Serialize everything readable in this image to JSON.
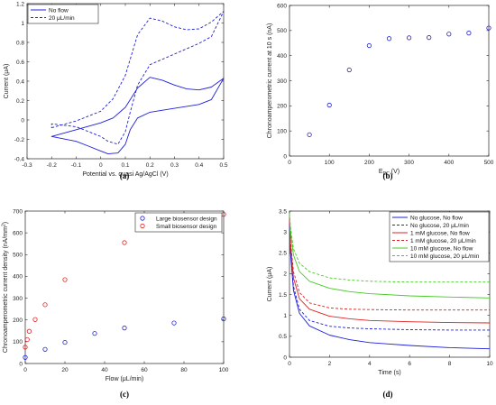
{
  "chart_data": [
    {
      "type": "line",
      "panel": "(a)",
      "xlabel": "Potential vs. quasi Ag/AgCl (V)",
      "ylabel": "Current (μA)",
      "xlim": [
        -0.3,
        0.5
      ],
      "ylim": [
        -0.4,
        1.2
      ],
      "xticks": [
        "-0.3",
        "-0.2",
        "-0.1",
        "0",
        "0.1",
        "0.2",
        "0.3",
        "0.4",
        "0.5"
      ],
      "yticks": [
        "-0.4",
        "-0.2",
        "0",
        "0.2",
        "0.4",
        "0.6",
        "0.8",
        "1",
        "1.2"
      ],
      "legend_position": "top-left",
      "series": [
        {
          "name": "No flow",
          "color": "#1f1fdc",
          "dash": "solid",
          "x": [
            -0.2,
            -0.1,
            0.0,
            0.05,
            0.1,
            0.15,
            0.2,
            0.25,
            0.3,
            0.35,
            0.4,
            0.45,
            0.5,
            0.45,
            0.4,
            0.3,
            0.2,
            0.15,
            0.12,
            0.1,
            0.07,
            0.03,
            0.0,
            -0.05,
            -0.1,
            -0.2
          ],
          "y": [
            -0.17,
            -0.1,
            -0.03,
            0.02,
            0.13,
            0.33,
            0.44,
            0.41,
            0.36,
            0.32,
            0.31,
            0.34,
            0.43,
            0.21,
            0.16,
            0.12,
            0.08,
            0.02,
            -0.1,
            -0.25,
            -0.34,
            -0.35,
            -0.32,
            -0.27,
            -0.22,
            -0.17
          ]
        },
        {
          "name": "20 μL/min",
          "color": "#1f1fdc",
          "dash": "dashed",
          "x": [
            -0.2,
            -0.1,
            0.0,
            0.05,
            0.1,
            0.15,
            0.2,
            0.25,
            0.3,
            0.35,
            0.4,
            0.45,
            0.5,
            0.45,
            0.4,
            0.3,
            0.2,
            0.15,
            0.12,
            0.1,
            0.07,
            0.03,
            0.0,
            -0.05,
            -0.1,
            -0.2
          ],
          "y": [
            -0.08,
            -0.01,
            0.09,
            0.22,
            0.46,
            0.88,
            1.05,
            1.02,
            0.96,
            0.93,
            0.94,
            1.01,
            1.12,
            0.86,
            0.79,
            0.68,
            0.57,
            0.36,
            0.08,
            -0.12,
            -0.25,
            -0.22,
            -0.17,
            -0.12,
            -0.07,
            -0.04
          ]
        }
      ]
    },
    {
      "type": "scatter",
      "panel": "(b)",
      "xlabel": "E",
      "xlabel_subscript": "DC",
      "xlabel_unit": " (V)",
      "ylabel": "Chronoamperometric current at 10 s (nA)",
      "xlim": [
        0,
        500
      ],
      "ylim": [
        0,
        600
      ],
      "xticks": [
        "0",
        "100",
        "200",
        "300",
        "400",
        "500"
      ],
      "yticks": [
        "0",
        "100",
        "200",
        "300",
        "400",
        "500",
        "600"
      ],
      "series": [
        {
          "color": "#1f1fdc",
          "x": [
            50,
            100,
            150,
            200,
            250,
            300,
            350,
            400,
            450,
            500
          ],
          "y": [
            85,
            203,
            343,
            440,
            468,
            471,
            472,
            486,
            490,
            510
          ]
        }
      ]
    },
    {
      "type": "scatter",
      "panel": "(c)",
      "xlabel": "Flow (μL/min)",
      "ylabel": "Chronoamperometric current density (nA/mm",
      "ylabel_superscript": "2",
      "ylabel_end": ")",
      "xlim": [
        0,
        100
      ],
      "ylim": [
        0,
        700
      ],
      "xticks": [
        "0",
        "20",
        "40",
        "60",
        "80",
        "100"
      ],
      "yticks": [
        "0",
        "100",
        "200",
        "300",
        "400",
        "500",
        "600",
        "700"
      ],
      "legend_position": "top-right",
      "series": [
        {
          "name": "Large biosensor design",
          "color": "#1f1fdc",
          "x": [
            0,
            10,
            20,
            35,
            50,
            75,
            100
          ],
          "y": [
            28,
            65,
            97,
            138,
            163,
            186,
            205
          ]
        },
        {
          "name": "Small biosensor design",
          "color": "#e02020",
          "x": [
            0,
            1,
            2,
            5,
            10,
            20,
            50,
            100
          ],
          "y": [
            75,
            110,
            148,
            202,
            270,
            385,
            555,
            685
          ]
        }
      ]
    },
    {
      "type": "line",
      "panel": "(d)",
      "xlabel": "Time (s)",
      "ylabel": "Current (μA)",
      "xlim": [
        0,
        10
      ],
      "ylim": [
        0,
        3.5
      ],
      "xticks": [
        "0",
        "2",
        "4",
        "6",
        "8",
        "10"
      ],
      "yticks": [
        "0",
        "0.5",
        "1",
        "1.5",
        "2",
        "2.5",
        "3",
        "3.5"
      ],
      "legend_position": "top-right",
      "series": [
        {
          "name": "No glucose, No flow",
          "color": "#1f1fdc",
          "dash": "solid",
          "x": [
            0,
            0.05,
            0.2,
            0.5,
            1,
            2,
            3,
            4,
            6,
            8,
            10
          ],
          "y": [
            3.2,
            2.5,
            1.6,
            1.05,
            0.75,
            0.53,
            0.42,
            0.35,
            0.28,
            0.23,
            0.2
          ]
        },
        {
          "name": "No glucose, 20 μL/min",
          "color": "#1f1fdc",
          "dash": "dashed",
          "x": [
            0,
            0.05,
            0.2,
            0.5,
            1,
            2,
            3,
            4,
            6,
            8,
            10
          ],
          "y": [
            3.3,
            2.6,
            1.7,
            1.15,
            0.88,
            0.74,
            0.7,
            0.68,
            0.66,
            0.65,
            0.65
          ]
        },
        {
          "name": "1 mM glucose, No flow",
          "color": "#e02020",
          "dash": "solid",
          "x": [
            0,
            0.05,
            0.2,
            0.5,
            1,
            2,
            3,
            4,
            6,
            8,
            10
          ],
          "y": [
            3.3,
            2.7,
            1.9,
            1.4,
            1.15,
            0.98,
            0.92,
            0.88,
            0.85,
            0.83,
            0.82
          ]
        },
        {
          "name": "1 mM glucose, 20 μL/min",
          "color": "#e02020",
          "dash": "dashed",
          "x": [
            0,
            0.05,
            0.2,
            0.5,
            1,
            2,
            3,
            4,
            6,
            8,
            10
          ],
          "y": [
            3.35,
            2.8,
            2.05,
            1.55,
            1.3,
            1.18,
            1.15,
            1.14,
            1.13,
            1.13,
            1.13
          ]
        },
        {
          "name": "10 mM glucose, No flow",
          "color": "#44cc22",
          "dash": "solid",
          "x": [
            0,
            0.05,
            0.2,
            0.5,
            1,
            2,
            3,
            4,
            6,
            8,
            10
          ],
          "y": [
            3.4,
            3.0,
            2.45,
            2.05,
            1.82,
            1.65,
            1.57,
            1.52,
            1.47,
            1.44,
            1.42
          ]
        },
        {
          "name": "10 mM glucose, 20 μL/min",
          "color": "#44cc22",
          "dash": "dashed",
          "x": [
            0,
            0.05,
            0.2,
            0.5,
            1,
            2,
            3,
            4,
            6,
            8,
            10
          ],
          "y": [
            3.45,
            3.1,
            2.6,
            2.25,
            2.05,
            1.9,
            1.85,
            1.82,
            1.8,
            1.8,
            1.8
          ]
        }
      ]
    }
  ]
}
